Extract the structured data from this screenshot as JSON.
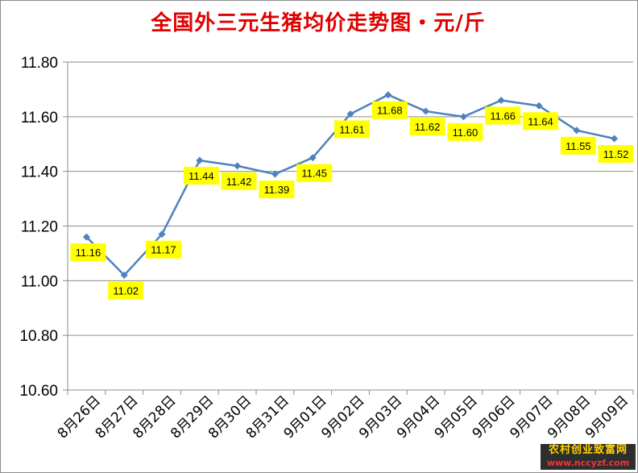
{
  "chart_data": {
    "type": "line",
    "title": "全国外三元生猪均价走势图・元/斤",
    "xlabel": "",
    "ylabel": "",
    "categories": [
      "8月26日",
      "8月27日",
      "8月28日",
      "8月29日",
      "8月30日",
      "8月31日",
      "9月01日",
      "9月02日",
      "9月03日",
      "9月04日",
      "9月05日",
      "9月06日",
      "9月07日",
      "9月08日",
      "9月09日"
    ],
    "series": [
      {
        "values": [
          11.16,
          11.02,
          11.17,
          11.44,
          11.42,
          11.39,
          11.45,
          11.61,
          11.68,
          11.62,
          11.6,
          11.66,
          11.64,
          11.55,
          11.52
        ],
        "labels": [
          "11.16",
          "11.02",
          "11.17",
          "11.44",
          "11.42",
          "11.39",
          "11.45",
          "11.61",
          "11.68",
          "11.62",
          "11.60",
          "11.66",
          "11.64",
          "11.55",
          "11.52"
        ]
      }
    ],
    "ylim": [
      10.6,
      11.8
    ],
    "yticks": [
      "10.60",
      "10.80",
      "11.00",
      "11.20",
      "11.40",
      "11.60",
      "11.80"
    ],
    "ytick_values": [
      10.6,
      10.8,
      11.0,
      11.2,
      11.4,
      11.6,
      11.8
    ],
    "grid": true,
    "legend": "none",
    "colors": {
      "line": "#4f81bd",
      "marker": "#4f81bd",
      "label_bg": "#ffff00",
      "title": "#e00000",
      "grid": "#8c8c8c"
    }
  },
  "watermark": {
    "text_cn": "农村创业致富网",
    "text_url": "www.nccyzf.com"
  }
}
